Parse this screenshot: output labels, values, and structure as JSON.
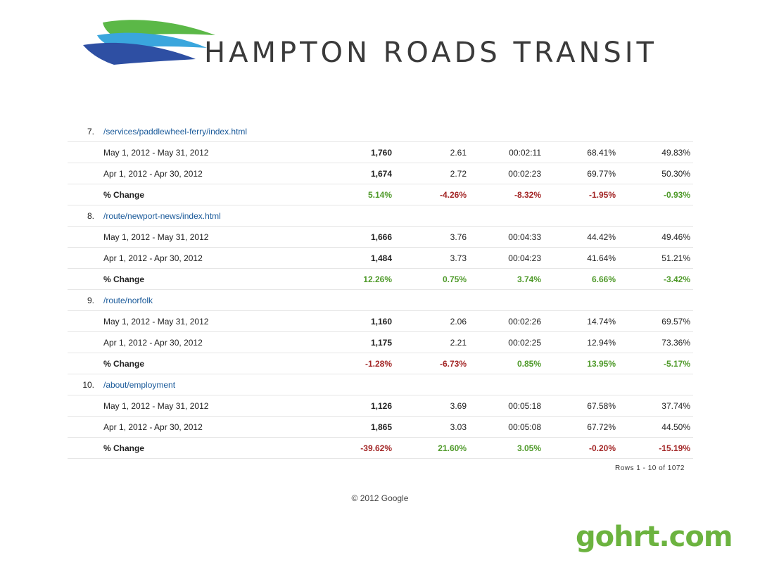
{
  "brand": {
    "name": "HAMPTON ROADS TRANSIT",
    "colors": {
      "green": "#5bb847",
      "cyan": "#3aa6dd",
      "blue": "#2e4fa3"
    },
    "site": "gohrt.com"
  },
  "rows": [
    {
      "num": "7.",
      "path": "/services/paddlewheel-ferry/index.html",
      "data": [
        {
          "label": "May 1, 2012 - May 31, 2012",
          "vals": [
            "1,760",
            "2.61",
            "00:02:11",
            "68.41%",
            "49.83%"
          ]
        },
        {
          "label": "Apr 1, 2012 - Apr 30, 2012",
          "vals": [
            "1,674",
            "2.72",
            "00:02:23",
            "69.77%",
            "50.30%"
          ]
        }
      ],
      "change": {
        "label": "% Change",
        "vals": [
          "5.14%",
          "-4.26%",
          "-8.32%",
          "-1.95%",
          "-0.93%"
        ],
        "signs": [
          "pos",
          "neg",
          "neg",
          "neg",
          "pos"
        ]
      }
    },
    {
      "num": "8.",
      "path": "/route/newport-news/index.html",
      "data": [
        {
          "label": "May 1, 2012 - May 31, 2012",
          "vals": [
            "1,666",
            "3.76",
            "00:04:33",
            "44.42%",
            "49.46%"
          ]
        },
        {
          "label": "Apr 1, 2012 - Apr 30, 2012",
          "vals": [
            "1,484",
            "3.73",
            "00:04:23",
            "41.64%",
            "51.21%"
          ]
        }
      ],
      "change": {
        "label": "% Change",
        "vals": [
          "12.26%",
          "0.75%",
          "3.74%",
          "6.66%",
          "-3.42%"
        ],
        "signs": [
          "pos",
          "pos",
          "pos",
          "pos",
          "pos"
        ]
      }
    },
    {
      "num": "9.",
      "path": "/route/norfolk",
      "data": [
        {
          "label": "May 1, 2012 - May 31, 2012",
          "vals": [
            "1,160",
            "2.06",
            "00:02:26",
            "14.74%",
            "69.57%"
          ]
        },
        {
          "label": "Apr 1, 2012 - Apr 30, 2012",
          "vals": [
            "1,175",
            "2.21",
            "00:02:25",
            "12.94%",
            "73.36%"
          ]
        }
      ],
      "change": {
        "label": "% Change",
        "vals": [
          "-1.28%",
          "-6.73%",
          "0.85%",
          "13.95%",
          "-5.17%"
        ],
        "signs": [
          "neg",
          "neg",
          "pos",
          "pos",
          "pos"
        ]
      }
    },
    {
      "num": "10.",
      "path": "/about/employment",
      "data": [
        {
          "label": "May 1, 2012 - May 31, 2012",
          "vals": [
            "1,126",
            "3.69",
            "00:05:18",
            "67.58%",
            "37.74%"
          ]
        },
        {
          "label": "Apr 1, 2012 - Apr 30, 2012",
          "vals": [
            "1,865",
            "3.03",
            "00:05:08",
            "67.72%",
            "44.50%"
          ]
        }
      ],
      "change": {
        "label": "% Change",
        "vals": [
          "-39.62%",
          "21.60%",
          "3.05%",
          "-0.20%",
          "-15.19%"
        ],
        "signs": [
          "neg",
          "pos",
          "pos",
          "neg",
          "neg"
        ]
      }
    }
  ],
  "footer": {
    "rows_info": "Rows 1 - 10 of 1072",
    "copyright": "© 2012 Google"
  }
}
